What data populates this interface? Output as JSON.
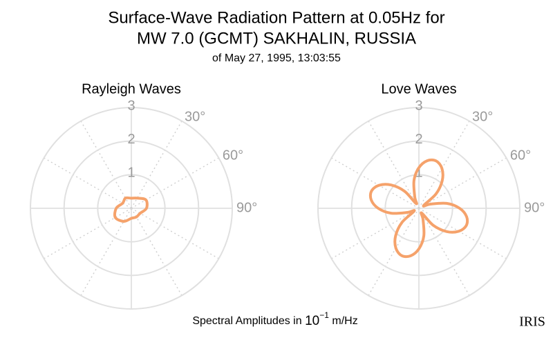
{
  "title": [
    "Surface-Wave Radiation Pattern at 0.05Hz for",
    "MW 7.0 (GCMT) SAKHALIN, RUSSIA"
  ],
  "subtitle": "of May 27, 1995, 13:03:55",
  "caption": {
    "text": "Spectral Amplitudes in",
    "base": "10",
    "exponent": "−1",
    "unit": "m/Hz"
  },
  "logo": "IRIS",
  "chart_data": [
    {
      "type": "polar",
      "title": "Rayleigh Waves",
      "color": "#f5a26b",
      "theta": [
        0,
        30,
        60,
        90,
        120,
        150,
        180,
        210,
        240,
        270,
        300,
        330
      ],
      "r": [
        0.3,
        0.35,
        0.5,
        0.45,
        0.3,
        0.3,
        0.3,
        0.45,
        0.55,
        0.45,
        0.3,
        0.35
      ],
      "rlim": [
        0,
        3
      ],
      "rticks": [
        1,
        2,
        3
      ],
      "thetaticks": [
        {
          "value": 30,
          "label": "30°"
        },
        {
          "value": 60,
          "label": "60°"
        },
        {
          "value": 90,
          "label": "90°"
        }
      ]
    },
    {
      "type": "polar",
      "title": "Love Waves",
      "color": "#f5a26b",
      "theta": [
        0,
        10,
        20,
        30,
        40,
        50,
        60,
        70,
        80,
        90,
        100,
        110,
        120,
        130,
        140,
        150,
        160,
        170,
        180,
        190,
        200,
        210,
        220,
        230,
        240,
        250,
        260,
        270,
        280,
        290,
        300,
        310,
        320,
        330,
        340,
        350
      ],
      "r": [
        1.21,
        1.44,
        1.5,
        1.37,
        1.08,
        0.66,
        0.16,
        0.36,
        0.84,
        1.21,
        1.44,
        1.5,
        1.37,
        1.08,
        0.66,
        0.16,
        0.36,
        0.84,
        1.21,
        1.44,
        1.5,
        1.37,
        1.08,
        0.66,
        0.16,
        0.36,
        0.84,
        1.21,
        1.44,
        1.5,
        1.37,
        1.08,
        0.66,
        0.16,
        0.36,
        0.84
      ],
      "rlim": [
        0,
        3
      ],
      "rticks": [
        1,
        2,
        3
      ],
      "thetaticks": [
        {
          "value": 30,
          "label": "30°"
        },
        {
          "value": 60,
          "label": "60°"
        },
        {
          "value": 90,
          "label": "90°"
        }
      ]
    }
  ]
}
